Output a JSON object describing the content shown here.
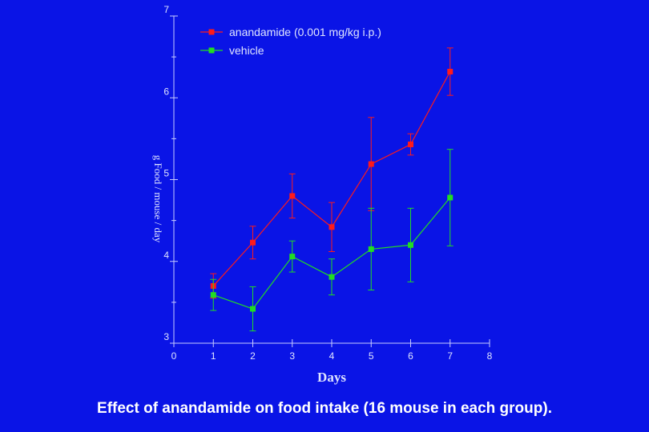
{
  "chart_data": {
    "type": "line",
    "caption": "Effect of anandamide on food intake (16 mouse in each group).",
    "xlabel": "Days",
    "ylabel": "g Food / mouse / day",
    "xlim": [
      0,
      8
    ],
    "ylim": [
      3,
      7
    ],
    "x_ticks": [
      "0",
      "1",
      "2",
      "3",
      "4",
      "5",
      "6",
      "7",
      "8"
    ],
    "y_ticks": [
      "3",
      "4",
      "5",
      "6",
      "7"
    ],
    "grid": false,
    "legend_position": "top",
    "series": [
      {
        "name": "anandamide (0.001 mg/kg  i.p.)",
        "color": "#ff1a1a",
        "x": [
          1,
          2,
          3,
          4,
          5,
          6,
          7
        ],
        "y": [
          3.7,
          4.23,
          4.8,
          4.42,
          5.19,
          5.43,
          6.32
        ],
        "error": [
          0.15,
          0.2,
          0.27,
          0.3,
          0.57,
          0.13,
          0.29
        ]
      },
      {
        "name": "vehicle",
        "color": "#22dd22",
        "x": [
          1,
          2,
          3,
          4,
          5,
          6,
          7
        ],
        "y": [
          3.59,
          3.42,
          4.06,
          3.81,
          4.15,
          4.2,
          4.78
        ],
        "error": [
          0.19,
          0.27,
          0.19,
          0.22,
          0.5,
          0.45,
          0.59
        ]
      }
    ]
  }
}
